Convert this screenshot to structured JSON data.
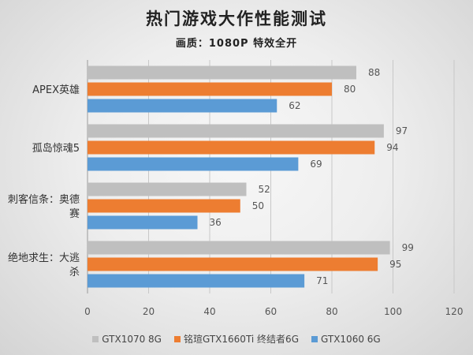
{
  "chart_data": {
    "type": "bar",
    "orientation": "horizontal",
    "title": "热门游戏大作性能测试",
    "subtitle": "画质：1080P 特效全开",
    "categories": [
      "APEX英雄",
      "孤岛惊魂5",
      "刺客信条：奥德赛",
      "绝地求生：大逃杀"
    ],
    "series": [
      {
        "name": "GTX1070 8G",
        "color": "#bfbfbf",
        "values": [
          88,
          97,
          52,
          99
        ]
      },
      {
        "name": "铭瑄GTX1660Ti 终结者6G",
        "color": "#ed7d31",
        "values": [
          80,
          94,
          50,
          95
        ]
      },
      {
        "name": "GTX1060 6G",
        "color": "#5b9bd5",
        "values": [
          62,
          69,
          36,
          71
        ]
      }
    ],
    "xlim": [
      0,
      120
    ],
    "xticks": [
      0,
      20,
      40,
      60,
      80,
      100,
      120
    ],
    "grid": true,
    "data_labels": true,
    "legend_position": "bottom"
  }
}
